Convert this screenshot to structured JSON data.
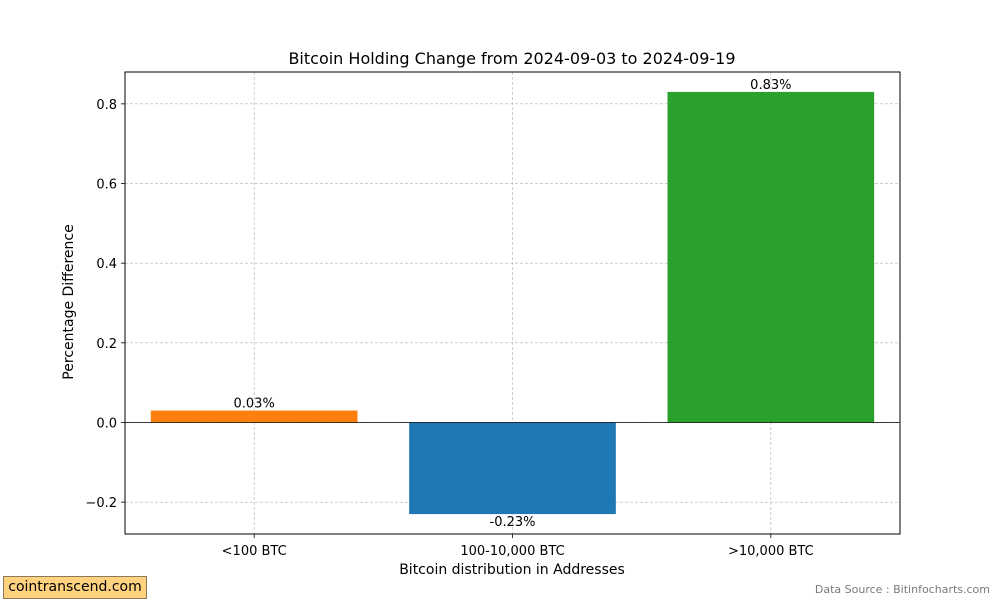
{
  "chart_data": {
    "type": "bar",
    "title": "Bitcoin Holding Change from 2024-09-03 to 2024-09-19",
    "xlabel": "Bitcoin distribution in Addresses",
    "ylabel": "Percentage Difference",
    "categories": [
      "<100 BTC",
      "100-10,000 BTC",
      ">10,000 BTC"
    ],
    "values": [
      0.03,
      -0.23,
      0.83
    ],
    "value_labels": [
      "0.03%",
      "-0.23%",
      "0.83%"
    ],
    "colors": [
      "#ff7f0e",
      "#1f77b4",
      "#2ca02c"
    ],
    "ylim": [
      -0.28,
      0.88
    ],
    "yticks": [
      -0.2,
      0.0,
      0.2,
      0.4,
      0.6,
      0.8
    ],
    "ytick_labels": [
      "−0.2",
      "0.0",
      "0.2",
      "0.4",
      "0.6",
      "0.8"
    ],
    "grid": true,
    "zero_line": true
  },
  "watermark": "cointranscend.com",
  "source": "Data Source : Bitinfocharts.com"
}
